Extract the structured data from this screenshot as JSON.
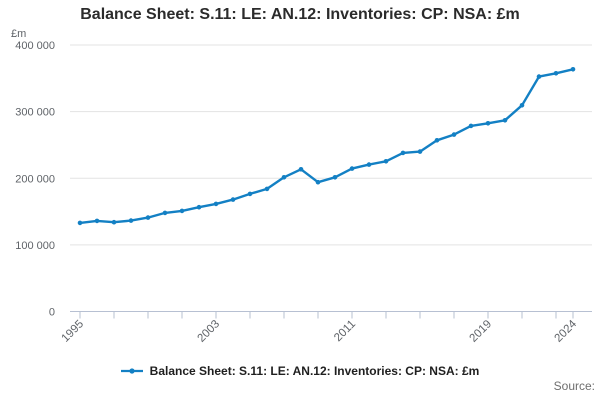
{
  "title": "Balance Sheet: S.11: LE: AN.12: Inventories: CP: NSA: £m",
  "y_axis_unit": "£m",
  "source_label": "Source:",
  "legend": {
    "label": "Balance Sheet: S.11: LE: AN.12: Inventories: CP: NSA: £m",
    "position": "bottom"
  },
  "colors": {
    "line": "#1380c4",
    "grid": "#e3e3e3",
    "axis": "#b7c0d2",
    "tick_text": "#5f6368",
    "title_text": "#2b2b2b",
    "legend_text": "#1f1f1f",
    "source_text": "#6e6e6e"
  },
  "chart_data": {
    "type": "line",
    "title": "Balance Sheet: S.11: LE: AN.12: Inventories: CP: NSA: £m",
    "xlabel": "",
    "ylabel": "£m",
    "grid": "horizontal",
    "legend_position": "bottom",
    "marker": "dot",
    "x": [
      1995,
      1996,
      1997,
      1998,
      1999,
      2000,
      2001,
      2002,
      2003,
      2004,
      2005,
      2006,
      2007,
      2008,
      2009,
      2010,
      2011,
      2012,
      2013,
      2014,
      2015,
      2016,
      2017,
      2018,
      2019,
      2020,
      2021,
      2022,
      2023,
      2024
    ],
    "series": [
      {
        "name": "Balance Sheet: S.11: LE: AN.12: Inventories: CP: NSA: £m",
        "values": [
          133000,
          136000,
          134000,
          136500,
          141000,
          148000,
          151000,
          156500,
          161500,
          168000,
          176500,
          184000,
          201500,
          213500,
          194000,
          201500,
          214500,
          220500,
          225500,
          238000,
          240000,
          257000,
          265500,
          278500,
          282500,
          287000,
          309500,
          352500,
          357500,
          363500
        ]
      }
    ],
    "xlim": [
      1995,
      2024
    ],
    "ylim": [
      0,
      400000
    ],
    "yticks": [
      0,
      100000,
      200000,
      300000,
      400000
    ],
    "ytick_labels": [
      "0",
      "100 000",
      "200 000",
      "300 000",
      "400 000"
    ],
    "xticks": [
      1995,
      1997,
      1999,
      2001,
      2003,
      2005,
      2007,
      2009,
      2011,
      2013,
      2015,
      2017,
      2019,
      2021,
      2023,
      2024
    ],
    "labeled_xticks": [
      "1995",
      "2003",
      "2011",
      "2019",
      "2024"
    ]
  }
}
